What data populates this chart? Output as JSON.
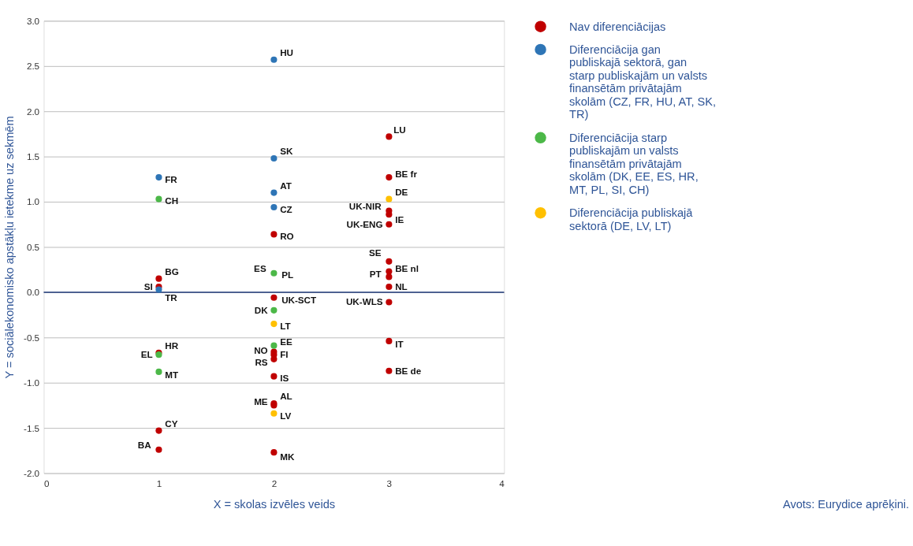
{
  "chart_data": {
    "type": "scatter",
    "xlabel": "X = skolas izvēles veids",
    "ylabel": "Y = sociālekonomisko apstākļu ietekme uz sekmēm",
    "xlim": [
      0,
      4
    ],
    "xticks": [
      0,
      1,
      2,
      3,
      4
    ],
    "ylim": [
      -2.0,
      3.0
    ],
    "yticks": [
      {
        "value": -2,
        "label": "-2.0"
      },
      {
        "value": -1.5,
        "label": "-1.5"
      },
      {
        "value": -1,
        "label": "-1.0"
      },
      {
        "value": -0.5,
        "label": "-0.5"
      },
      {
        "value": 0,
        "label": "0.0"
      },
      {
        "value": 0.5,
        "label": "0.5"
      },
      {
        "value": 1,
        "label": "1.0"
      },
      {
        "value": 1.5,
        "label": "1.5"
      },
      {
        "value": 2,
        "label": "2.0"
      },
      {
        "value": 2.5,
        "label": "2.5"
      },
      {
        "value": 3,
        "label": "3.0"
      }
    ],
    "grid": "y",
    "legend": "right",
    "marker": "circle",
    "ref_lines": [
      {
        "axis": "y",
        "value": 0,
        "color": "#1f3a7a"
      }
    ],
    "series": [
      {
        "name": "Nav diferenciācijas",
        "color": "#c00000",
        "x": [
          1,
          1,
          1,
          1,
          1,
          2,
          2,
          2,
          2,
          2,
          2,
          2,
          2,
          2,
          3,
          3,
          3,
          3,
          3,
          3,
          3,
          3,
          3,
          3,
          3,
          3
        ],
        "values": [
          0.15,
          0.06,
          -0.67,
          -1.53,
          -1.74,
          0.64,
          -0.06,
          -0.66,
          -0.69,
          -0.74,
          -0.93,
          -1.23,
          -1.25,
          -1.77,
          1.72,
          1.27,
          0.9,
          0.86,
          0.75,
          0.34,
          0.23,
          0.17,
          0.06,
          -0.11,
          -0.54,
          -0.87
        ]
      },
      {
        "name": "Diferenciācija gan publiskajā sektorā, gan starp publiskajām un valsts finansētām privātajām skolām (CZ, FR, HU, AT, SK, TR)",
        "color": "#2e75b6",
        "x": [
          1,
          1,
          2,
          2,
          2,
          2
        ],
        "values": [
          1.27,
          0.03,
          2.57,
          1.48,
          1.1,
          0.94
        ]
      },
      {
        "name": "Diferenciācija starp publiskajām un valsts finansētām privātajām skolām  (DK, EE, ES, HR, MT, PL, SI, CH)",
        "color": "#4cb848",
        "x": [
          1,
          1,
          1,
          2,
          2,
          2
        ],
        "values": [
          1.03,
          -0.69,
          -0.88,
          0.21,
          -0.2,
          -0.59
        ]
      },
      {
        "name": "Diferenciācija publiskajā sektorā (DE, LV, LT)",
        "color": "#ffc000",
        "x": [
          2,
          2,
          3
        ],
        "values": [
          -0.35,
          -1.34,
          1.03
        ]
      }
    ],
    "annotations": [
      {
        "text": "FR",
        "x": 1,
        "y": 1.27
      },
      {
        "text": "CH",
        "x": 1,
        "y": 1.03
      },
      {
        "text": "BG",
        "x": 1,
        "y": 0.15
      },
      {
        "text": "SI",
        "x": 1,
        "y": 0.06
      },
      {
        "text": "TR",
        "x": 1,
        "y": 0.03
      },
      {
        "text": "HR",
        "x": 1,
        "y": -0.67
      },
      {
        "text": "EL",
        "x": 1,
        "y": -0.69
      },
      {
        "text": "MT",
        "x": 1,
        "y": -0.88
      },
      {
        "text": "CY",
        "x": 1,
        "y": -1.53
      },
      {
        "text": "BA",
        "x": 1,
        "y": -1.74
      },
      {
        "text": "HU",
        "x": 2,
        "y": 2.57
      },
      {
        "text": "SK",
        "x": 2,
        "y": 1.48
      },
      {
        "text": "AT",
        "x": 2,
        "y": 1.1
      },
      {
        "text": "CZ",
        "x": 2,
        "y": 0.94
      },
      {
        "text": "RO",
        "x": 2,
        "y": 0.64
      },
      {
        "text": "ES",
        "x": 2,
        "y": 0.21
      },
      {
        "text": "PL",
        "x": 2,
        "y": 0.21
      },
      {
        "text": "UK-SCT",
        "x": 2,
        "y": -0.06
      },
      {
        "text": "DK",
        "x": 2,
        "y": -0.2
      },
      {
        "text": "LT",
        "x": 2,
        "y": -0.35
      },
      {
        "text": "EE",
        "x": 2,
        "y": -0.59
      },
      {
        "text": "NO",
        "x": 2,
        "y": -0.66
      },
      {
        "text": "FI",
        "x": 2,
        "y": -0.69
      },
      {
        "text": "RS",
        "x": 2,
        "y": -0.74
      },
      {
        "text": "IS",
        "x": 2,
        "y": -0.93
      },
      {
        "text": "AL",
        "x": 2,
        "y": -1.23
      },
      {
        "text": "ME",
        "x": 2,
        "y": -1.25
      },
      {
        "text": "LV",
        "x": 2,
        "y": -1.34
      },
      {
        "text": "MK",
        "x": 2,
        "y": -1.77
      },
      {
        "text": "LU",
        "x": 3,
        "y": 1.72
      },
      {
        "text": "BE fr",
        "x": 3,
        "y": 1.27
      },
      {
        "text": "DE",
        "x": 3,
        "y": 1.03
      },
      {
        "text": "UK-NIR",
        "x": 3,
        "y": 0.9
      },
      {
        "text": "IE",
        "x": 3,
        "y": 0.86
      },
      {
        "text": "UK-ENG",
        "x": 3,
        "y": 0.75
      },
      {
        "text": "SE",
        "x": 3,
        "y": 0.34
      },
      {
        "text": "BE nl",
        "x": 3,
        "y": 0.23
      },
      {
        "text": "PT",
        "x": 3,
        "y": 0.17
      },
      {
        "text": "NL",
        "x": 3,
        "y": 0.06
      },
      {
        "text": "UK-WLS",
        "x": 3,
        "y": -0.11
      },
      {
        "text": "IT",
        "x": 3,
        "y": -0.54
      },
      {
        "text": "BE de",
        "x": 3,
        "y": -0.87
      },
      "Avots: Eurydice aprēķini."
    ]
  }
}
